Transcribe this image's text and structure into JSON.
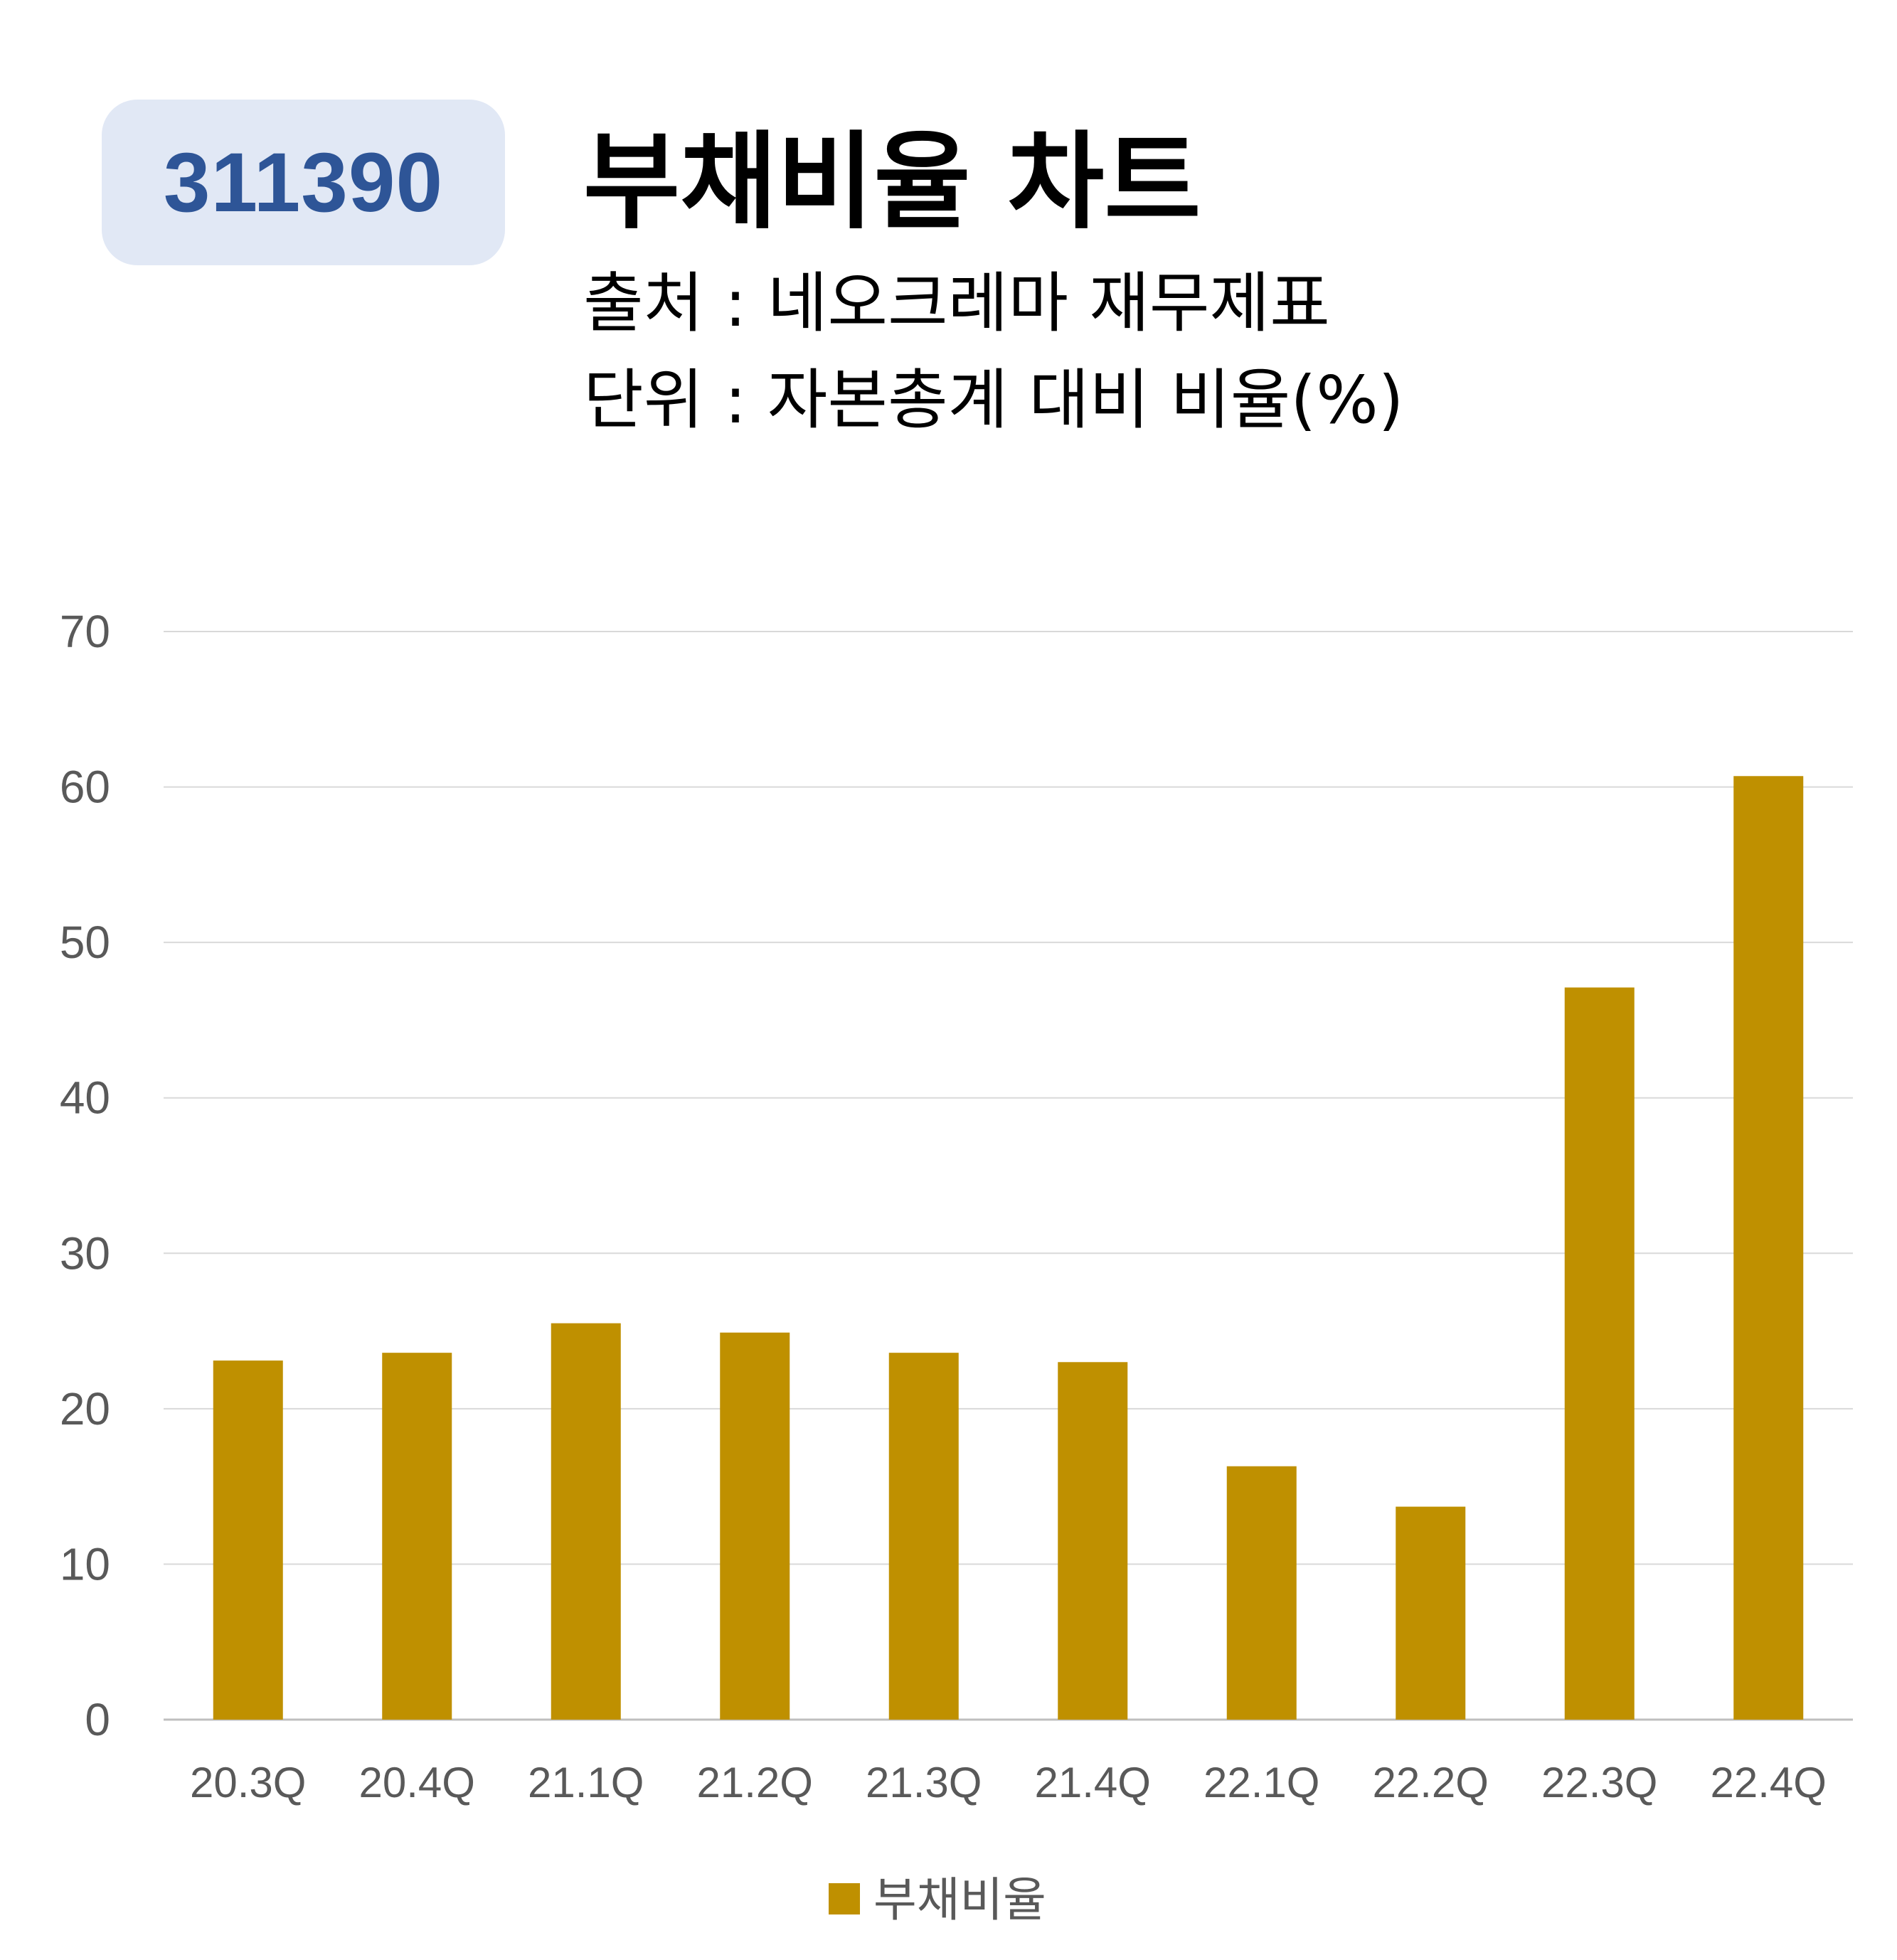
{
  "badge": {
    "code": "311390"
  },
  "header": {
    "title": "부채비율 차트",
    "source": "출처 : 네오크레마 재무제표",
    "unit": "단위 : 자본총계 대비 비율(%)"
  },
  "colors": {
    "bar": "#bf9000",
    "badge_bg": "#e1e8f5",
    "badge_text": "#2e5597",
    "grid": "#d9d9d9",
    "tick_text": "#595959"
  },
  "chart_data": {
    "type": "bar",
    "categories": [
      "20.3Q",
      "20.4Q",
      "21.1Q",
      "21.2Q",
      "21.3Q",
      "21.4Q",
      "22.1Q",
      "22.2Q",
      "22.3Q",
      "22.4Q"
    ],
    "series": [
      {
        "name": "부채비율",
        "values": [
          23.1,
          23.6,
          25.5,
          24.9,
          23.6,
          23.0,
          16.3,
          13.7,
          47.1,
          60.7
        ]
      }
    ],
    "yticks": [
      0,
      10,
      20,
      30,
      40,
      50,
      60,
      70
    ],
    "ylim": [
      0,
      70
    ],
    "grid": true,
    "legend_position": "bottom"
  }
}
